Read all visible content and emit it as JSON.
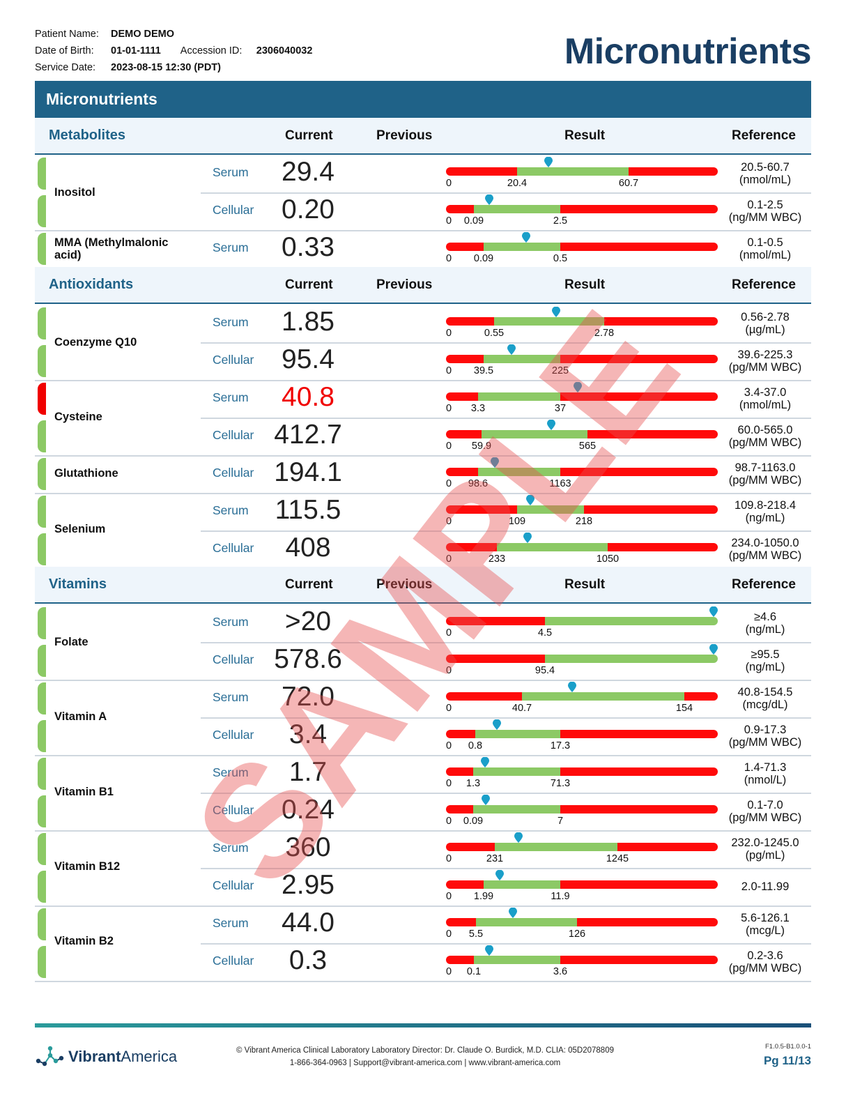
{
  "patient": {
    "name_label": "Patient Name:",
    "name": "DEMO DEMO",
    "dob_label": "Date of Birth:",
    "dob": "01-01-1111",
    "accession_label": "Accession ID:",
    "accession": "2306040032",
    "service_label": "Service Date:",
    "service": "2023-08-15 12:30 (PDT)"
  },
  "page_title": "Micronutrients",
  "banner_title": "Micronutrients",
  "columns": {
    "current": "Current",
    "previous": "Previous",
    "result": "Result",
    "reference": "Reference"
  },
  "sections": [
    {
      "name": "Metabolites"
    },
    {
      "name": "Antioxidants"
    },
    {
      "name": "Vitamins"
    }
  ],
  "analytes": [
    "Inositol",
    "MMA (Methylmalonic acid)",
    "Coenzyme Q10",
    "Cysteine",
    "Glutathione",
    "Selenium",
    "Folate",
    "Vitamin A",
    "Vitamin B1",
    "Vitamin B12",
    "Vitamin B2"
  ],
  "rows": [
    {
      "sub": "Serum",
      "value": "29.4",
      "level": 29.4,
      "status": "normal",
      "ticks": [
        "0",
        "20.4",
        "60.7"
      ],
      "ref_range": "20.5-60.7",
      "ref_unit": "(nmol/mL)"
    },
    {
      "sub": "Cellular",
      "value": "0.20",
      "level": 0.2,
      "status": "normal",
      "ticks": [
        "0",
        "0.09",
        "2.5"
      ],
      "ref_range": "0.1-2.5",
      "ref_unit": "(ng/MM WBC)"
    },
    {
      "sub": "Serum",
      "value": "0.33",
      "level": 0.33,
      "status": "normal",
      "ticks": [
        "0",
        "0.09",
        "0.5"
      ],
      "ref_range": "0.1-0.5",
      "ref_unit": "(nmol/mL)"
    },
    {
      "sub": "Serum",
      "value": "1.85",
      "level": 1.85,
      "status": "normal",
      "ticks": [
        "0",
        "0.55",
        "2.78"
      ],
      "ref_range": "0.56-2.78",
      "ref_unit": "(µg/mL)"
    },
    {
      "sub": "Cellular",
      "value": "95.4",
      "level": 95.4,
      "status": "normal",
      "ticks": [
        "0",
        "39.5",
        "225"
      ],
      "ref_range": "39.6-225.3",
      "ref_unit": "(pg/MM WBC)"
    },
    {
      "sub": "Serum",
      "value": "40.8",
      "level": 40.8,
      "status": "high",
      "ticks": [
        "0",
        "3.3",
        "37"
      ],
      "ref_range": "3.4-37.0",
      "ref_unit": "(nmol/mL)"
    },
    {
      "sub": "Cellular",
      "value": "412.7",
      "level": 412.7,
      "status": "normal",
      "ticks": [
        "0",
        "59.9",
        "565"
      ],
      "ref_range": "60.0-565.0",
      "ref_unit": "(pg/MM WBC)"
    },
    {
      "sub": "Cellular",
      "value": "194.1",
      "level": 194.1,
      "status": "normal",
      "ticks": [
        "0",
        "98.6",
        "1163"
      ],
      "ref_range": "98.7-1163.0",
      "ref_unit": "(pg/MM WBC)"
    },
    {
      "sub": "Serum",
      "value": "115.5",
      "level": 115.5,
      "status": "normal",
      "ticks": [
        "0",
        "109",
        "218"
      ],
      "ref_range": "109.8-218.4",
      "ref_unit": "(ng/mL)"
    },
    {
      "sub": "Cellular",
      "value": "408",
      "level": 408,
      "status": "normal",
      "ticks": [
        "0",
        "233",
        "1050"
      ],
      "ref_range": "234.0-1050.0",
      "ref_unit": "(pg/MM WBC)"
    },
    {
      "sub": "Serum",
      "value": ">20",
      "level": 20,
      "status": "normal",
      "ticks": [
        "0",
        "4.5"
      ],
      "ref_range": "≥4.6",
      "ref_unit": "(ng/mL)"
    },
    {
      "sub": "Cellular",
      "value": "578.6",
      "level": 578.6,
      "status": "normal",
      "ticks": [
        "0",
        "95.4"
      ],
      "ref_range": "≥95.5",
      "ref_unit": "(ng/mL)"
    },
    {
      "sub": "Serum",
      "value": "72.0",
      "level": 72.0,
      "status": "normal",
      "ticks": [
        "0",
        "40.7",
        "154"
      ],
      "ref_range": "40.8-154.5",
      "ref_unit": "(mcg/dL)"
    },
    {
      "sub": "Cellular",
      "value": "3.4",
      "level": 3.4,
      "status": "normal",
      "ticks": [
        "0",
        "0.8",
        "17.3"
      ],
      "ref_range": "0.9-17.3",
      "ref_unit": "(pg/MM WBC)"
    },
    {
      "sub": "Serum",
      "value": "1.7",
      "level": 1.7,
      "status": "normal",
      "ticks": [
        "0",
        "1.3",
        "71.3"
      ],
      "ref_range": "1.4-71.3",
      "ref_unit": "(nmol/L)"
    },
    {
      "sub": "Cellular",
      "value": "0.24",
      "level": 0.24,
      "status": "normal",
      "ticks": [
        "0",
        "0.09",
        "7"
      ],
      "ref_range": "0.1-7.0",
      "ref_unit": "(pg/MM WBC)"
    },
    {
      "sub": "Serum",
      "value": "360",
      "level": 360,
      "status": "normal",
      "ticks": [
        "0",
        "231",
        "1245"
      ],
      "ref_range": "232.0-1245.0",
      "ref_unit": "(pg/mL)"
    },
    {
      "sub": "Cellular",
      "value": "2.95",
      "level": 2.95,
      "status": "normal",
      "ticks": [
        "0",
        "1.99",
        "11.9"
      ],
      "ref_range": "2.0-11.99",
      "ref_unit": ""
    },
    {
      "sub": "Serum",
      "value": "44.0",
      "level": 44.0,
      "status": "normal",
      "ticks": [
        "0",
        "5.5",
        "126"
      ],
      "ref_range": "5.6-126.1",
      "ref_unit": "(mcg/L)"
    },
    {
      "sub": "Cellular",
      "value": "0.3",
      "level": 0.3,
      "status": "normal",
      "ticks": [
        "0",
        "0.1",
        "3.6"
      ],
      "ref_range": "0.2-3.6",
      "ref_unit": "(pg/MM WBC)"
    }
  ],
  "watermark": "SAMPLE",
  "colors": {
    "navy": "#1a3e63",
    "banner": "#1f6288",
    "bar_red": "#ff0a0a",
    "bar_green": "#8cc965",
    "marker": "#1a9fc9",
    "high_text": "#f00000"
  },
  "footer": {
    "logo_bold": "Vibrant",
    "logo_light": "America",
    "line1": "Vibrant America Clinical Laboratory Laboratory Director: Dr. Claude O. Burdick, M.D. CLIA: 05D2078809",
    "line2": "1-866-364-0963 | Support@vibrant-america.com | www.vibrant-america.com",
    "copyright_icon": "copyright-icon",
    "version": "F1.0.5-B1.0.0-1",
    "page": "Pg 11/13"
  }
}
